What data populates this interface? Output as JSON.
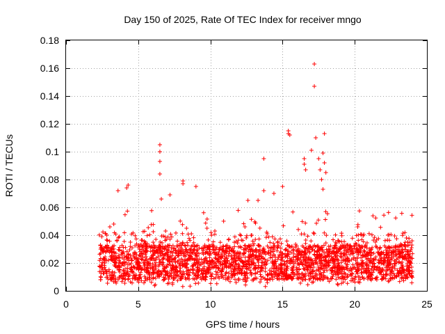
{
  "chart_data": {
    "type": "scatter",
    "title": "Day 150 of 2025, Rate Of TEC Index for receiver mngo",
    "xlabel": "GPS time / hours",
    "ylabel": "ROTI / TECUs",
    "xlim": [
      0,
      25
    ],
    "ylim": [
      0,
      0.18
    ],
    "x_ticks": [
      0,
      5,
      10,
      15,
      20,
      25
    ],
    "x_tick_labels": [
      "0",
      "5",
      "10",
      "15",
      "20",
      "25"
    ],
    "y_ticks": [
      0,
      0.02,
      0.04,
      0.06,
      0.08,
      0.1,
      0.12,
      0.14,
      0.16,
      0.18
    ],
    "y_tick_labels": [
      "0",
      "0.02",
      "0.04",
      "0.06",
      "0.08",
      "0.1",
      "0.12",
      "0.14",
      "0.16",
      "0.18"
    ],
    "grid": true,
    "marker": "+",
    "color": "#ff0000",
    "series": [
      {
        "name": "ROTI",
        "x_range": [
          2.3,
          24.0
        ],
        "typical_range": [
          0.005,
          0.04
        ],
        "outliers": [
          [
            6.5,
            0.105
          ],
          [
            6.5,
            0.1
          ],
          [
            6.5,
            0.093
          ],
          [
            6.5,
            0.084
          ],
          [
            6.6,
            0.066
          ],
          [
            7.2,
            0.069
          ],
          [
            8.1,
            0.079
          ],
          [
            8.1,
            0.077
          ],
          [
            9.0,
            0.075
          ],
          [
            12.6,
            0.065
          ],
          [
            13.3,
            0.065
          ],
          [
            13.7,
            0.095
          ],
          [
            13.7,
            0.072
          ],
          [
            14.4,
            0.07
          ],
          [
            15.0,
            0.075
          ],
          [
            15.4,
            0.115
          ],
          [
            15.4,
            0.113
          ],
          [
            15.5,
            0.112
          ],
          [
            16.5,
            0.095
          ],
          [
            16.5,
            0.091
          ],
          [
            16.6,
            0.087
          ],
          [
            17.0,
            0.101
          ],
          [
            17.2,
            0.163
          ],
          [
            17.2,
            0.147
          ],
          [
            17.3,
            0.11
          ],
          [
            17.5,
            0.095
          ],
          [
            17.6,
            0.087
          ],
          [
            17.7,
            0.08
          ],
          [
            17.8,
            0.099
          ],
          [
            17.9,
            0.113
          ],
          [
            17.9,
            0.092
          ],
          [
            18.0,
            0.085
          ],
          [
            17.8,
            0.073
          ],
          [
            4.3,
            0.076
          ],
          [
            4.2,
            0.074
          ],
          [
            3.6,
            0.072
          ]
        ]
      }
    ]
  }
}
